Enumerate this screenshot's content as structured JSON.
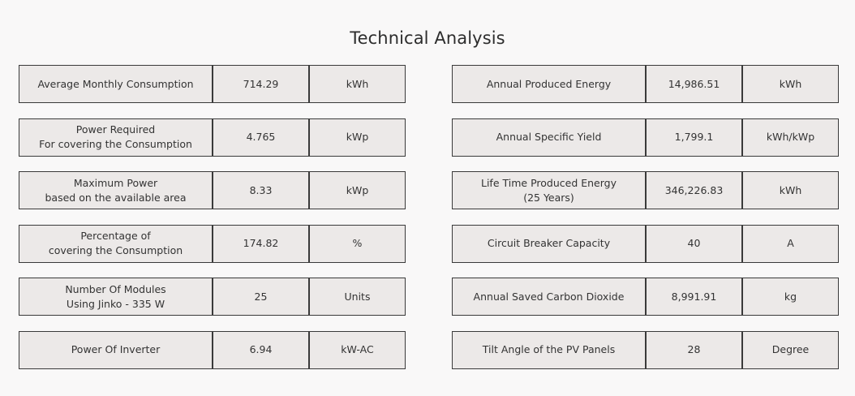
{
  "title": "Technical Analysis",
  "left_rows": [
    {
      "label_line1": "Average Monthly Consumption",
      "label_line2": "",
      "value": "714.29",
      "unit": "kWh"
    },
    {
      "label_line1": "Power Required",
      "label_line2": "For covering the Consumption",
      "value": "4.765",
      "unit": "kWp"
    },
    {
      "label_line1": "Maximum Power",
      "label_line2": "based on the available area",
      "value": "8.33",
      "unit": "kWp"
    },
    {
      "label_line1": "Percentage of",
      "label_line2": "covering the Consumption",
      "value": "174.82",
      "unit": "%"
    },
    {
      "label_line1": "Number Of Modules",
      "label_line2": "Using Jinko - 335 W",
      "value": "25",
      "unit": "Units"
    },
    {
      "label_line1": "Power Of Inverter",
      "label_line2": "",
      "value": "6.94",
      "unit": "kW-AC"
    }
  ],
  "right_rows": [
    {
      "label_line1": "Annual Produced Energy",
      "label_line2": "",
      "value": "14,986.51",
      "unit": "kWh"
    },
    {
      "label_line1": "Annual Specific Yield",
      "label_line2": "",
      "value": "1,799.1",
      "unit": "kWh/kWp"
    },
    {
      "label_line1": "Life Time Produced Energy",
      "label_line2": "(25 Years)",
      "value": "346,226.83",
      "unit": "kWh"
    },
    {
      "label_line1": "Circuit Breaker Capacity",
      "label_line2": "",
      "value": "40",
      "unit": "A"
    },
    {
      "label_line1": "Annual Saved Carbon Dioxide",
      "label_line2": "",
      "value": "8,991.91",
      "unit": "kg"
    },
    {
      "label_line1": "Tilt Angle of the PV Panels",
      "label_line2": "",
      "value": "28",
      "unit": "Degree"
    }
  ]
}
